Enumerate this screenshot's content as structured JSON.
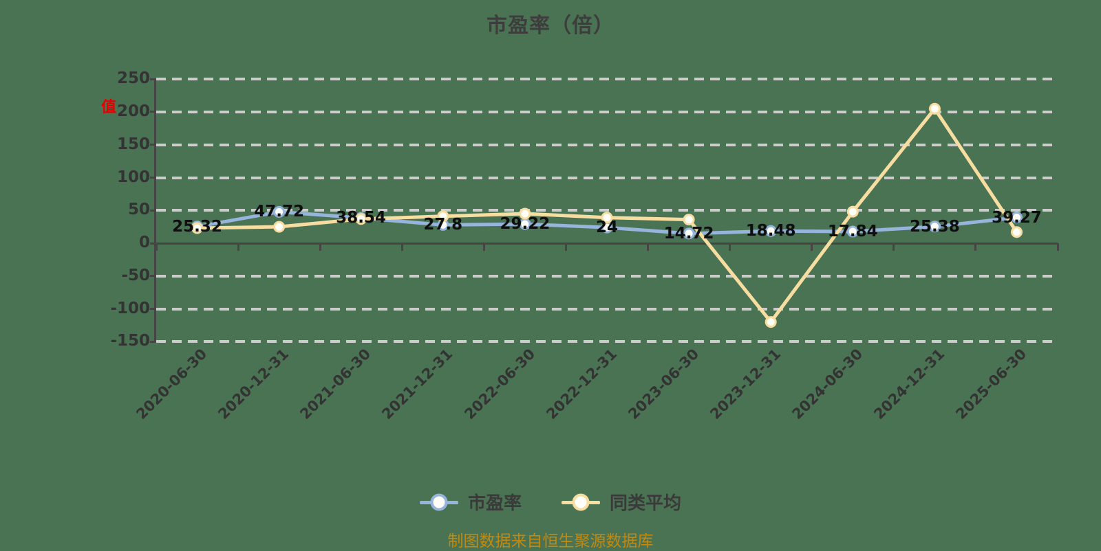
{
  "title": "市盈率（倍）",
  "watermark_fragment": "值",
  "source_note": "制图数据来自恒生聚源数据库",
  "colors": {
    "background": "#4a7354",
    "pe_line": "#97b4dd",
    "peer_line": "#f8dda1",
    "marker_fill": "#fffef8",
    "grid": "#cccccc",
    "axis": "#454545",
    "title_text": "#3d3d3d",
    "label_text": "#0f0f0f",
    "source_text": "#c08a12",
    "watermark_red": "#e60000"
  },
  "legend": [
    {
      "label": "市盈率",
      "color": "#97b4dd"
    },
    {
      "label": "同类平均",
      "color": "#f8dda1"
    }
  ],
  "y_axis_ticks": [
    "250",
    "200",
    "150",
    "100",
    "50",
    "0",
    "-50",
    "-100",
    "-150"
  ],
  "chart_data": {
    "type": "line",
    "title": "市盈率（倍）",
    "categories": [
      "2020-06-30",
      "2020-12-31",
      "2021-06-30",
      "2021-12-31",
      "2022-06-30",
      "2022-12-31",
      "2023-06-30",
      "2023-12-31",
      "2024-06-30",
      "2024-12-31",
      "2025-06-30"
    ],
    "series": [
      {
        "name": "市盈率",
        "color": "#97b4dd",
        "values": [
          25.32,
          47.72,
          38.54,
          27.8,
          29.22,
          24,
          14.72,
          18.48,
          17.84,
          25.38,
          39.27
        ],
        "labels": [
          "25.32",
          "47.72",
          "38.54",
          "27.8",
          "29.22",
          "24",
          "14.72",
          "18.48",
          "17.84",
          "25.38",
          "39.27"
        ],
        "show_labels": true
      },
      {
        "name": "同类平均",
        "color": "#f8dda1",
        "values": [
          23,
          25,
          37,
          41,
          45,
          39,
          36,
          -120,
          48,
          205,
          17
        ],
        "show_labels": false
      }
    ],
    "ylim": [
      -150,
      250
    ],
    "ytick_interval": 50,
    "grid": "horizontal-dashed",
    "legend_position": "bottom"
  }
}
